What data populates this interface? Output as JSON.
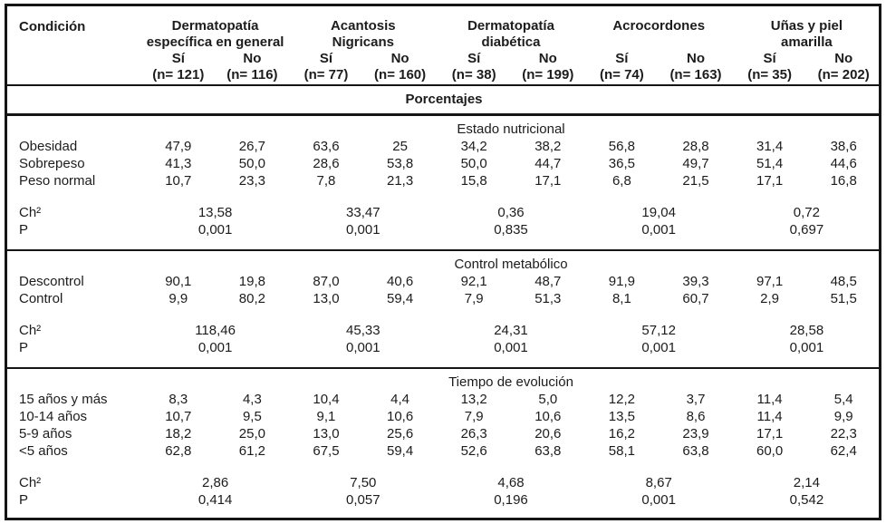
{
  "condition_header": "Condición",
  "porcentajes": "Porcentajes",
  "groups": [
    {
      "name_lines": [
        "Dermatopatía",
        "específica en general"
      ],
      "yes_label": "Sí",
      "no_label": "No",
      "n_yes": "(n= 121)",
      "n_no": "(n= 116)"
    },
    {
      "name_lines": [
        "Acantosis",
        "Nigricans"
      ],
      "yes_label": "Sí",
      "no_label": "No",
      "n_yes": "(n= 77)",
      "n_no": "(n= 160)"
    },
    {
      "name_lines": [
        "Dermatopatía",
        "diabética"
      ],
      "yes_label": "Sí",
      "no_label": "No",
      "n_yes": "(n= 38)",
      "n_no": "(n= 199)"
    },
    {
      "name_lines": [
        "Acrocordones"
      ],
      "yes_label": "Sí",
      "no_label": "No",
      "n_yes": "(n= 74)",
      "n_no": "(n= 163)"
    },
    {
      "name_lines": [
        "Uñas y piel",
        "amarilla"
      ],
      "yes_label": "Sí",
      "no_label": "No",
      "n_yes": "(n= 35)",
      "n_no": "(n= 202)"
    }
  ],
  "sections": [
    {
      "title": "Estado nutricional",
      "rows": [
        {
          "label": "Obesidad",
          "values": [
            "47,9",
            "26,7",
            "63,6",
            "25",
            "34,2",
            "38,2",
            "56,8",
            "28,8",
            "31,4",
            "38,6"
          ]
        },
        {
          "label": "Sobrepeso",
          "values": [
            "41,3",
            "50,0",
            "28,6",
            "53,8",
            "50,0",
            "44,7",
            "36,5",
            "49,7",
            "51,4",
            "44,6"
          ]
        },
        {
          "label": "Peso normal",
          "values": [
            "10,7",
            "23,3",
            "7,8",
            "21,3",
            "15,8",
            "17,1",
            "6,8",
            "21,5",
            "17,1",
            "16,8"
          ]
        }
      ],
      "stats": [
        {
          "label": "Ch²",
          "values": [
            "13,58",
            "33,47",
            "0,36",
            "19,04",
            "0,72"
          ]
        },
        {
          "label": "P",
          "values": [
            "0,001",
            "0,001",
            "0,835",
            "0,001",
            "0,697"
          ]
        }
      ]
    },
    {
      "title": "Control metabólico",
      "rows": [
        {
          "label": "Descontrol",
          "values": [
            "90,1",
            "19,8",
            "87,0",
            "40,6",
            "92,1",
            "48,7",
            "91,9",
            "39,3",
            "97,1",
            "48,5"
          ]
        },
        {
          "label": "Control",
          "values": [
            "9,9",
            "80,2",
            "13,0",
            "59,4",
            "7,9",
            "51,3",
            "8,1",
            "60,7",
            "2,9",
            "51,5"
          ]
        }
      ],
      "stats": [
        {
          "label": "Ch²",
          "values": [
            "118,46",
            "45,33",
            "24,31",
            "57,12",
            "28,58"
          ]
        },
        {
          "label": "P",
          "values": [
            "0,001",
            "0,001",
            "0,001",
            "0,001",
            "0,001"
          ]
        }
      ]
    },
    {
      "title": "Tiempo de evolución",
      "rows": [
        {
          "label": "15 años y más",
          "values": [
            "8,3",
            "4,3",
            "10,4",
            "4,4",
            "13,2",
            "5,0",
            "12,2",
            "3,7",
            "11,4",
            "5,4"
          ]
        },
        {
          "label": "10-14 años",
          "values": [
            "10,7",
            "9,5",
            "9,1",
            "10,6",
            "7,9",
            "10,6",
            "13,5",
            "8,6",
            "11,4",
            "9,9"
          ]
        },
        {
          "label": "5-9 años",
          "values": [
            "18,2",
            "25,0",
            "13,0",
            "25,6",
            "26,3",
            "20,6",
            "16,2",
            "23,9",
            "17,1",
            "22,3"
          ]
        },
        {
          "label": "<5 años",
          "values": [
            "62,8",
            "61,2",
            "67,5",
            "59,4",
            "52,6",
            "63,8",
            "58,1",
            "63,8",
            "60,0",
            "62,4"
          ]
        }
      ],
      "stats": [
        {
          "label": "Ch²",
          "values": [
            "2,86",
            "7,50",
            "4,68",
            "8,67",
            "2,14"
          ]
        },
        {
          "label": "P",
          "values": [
            "0,414",
            "0,057",
            "0,196",
            "0,001",
            "0,542"
          ]
        }
      ]
    }
  ]
}
